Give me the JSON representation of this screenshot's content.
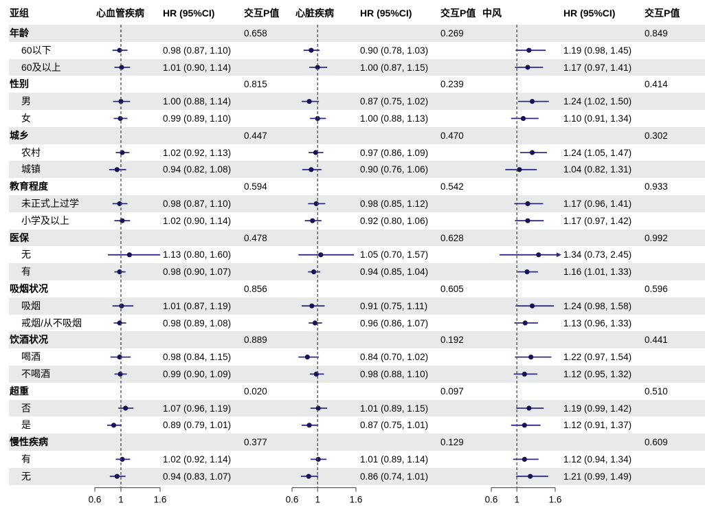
{
  "chart_data": {
    "type": "forest",
    "title": "",
    "axis": {
      "min": 0.6,
      "max": 1.6,
      "reference": 1,
      "ticks": [
        "0.6",
        "1",
        "1.6"
      ],
      "scale": "linear"
    },
    "header": {
      "subgroup": "亚组",
      "cols": [
        {
          "outcome": "心血管疾病",
          "hr": "HR (95%CI)",
          "p": "交互P值"
        },
        {
          "outcome": "心脏疾病",
          "hr": "HR (95%CI)",
          "p": "交互P值"
        },
        {
          "outcome": "中风",
          "hr": "HR (95%CI)",
          "p": "交互P值"
        }
      ]
    },
    "rows": [
      {
        "type": "group",
        "label": "年龄",
        "p": [
          "0.658",
          "0.269",
          "0.849"
        ]
      },
      {
        "type": "item",
        "label": "60以下",
        "hr": [
          {
            "est": 0.98,
            "lo": 0.87,
            "hi": 1.1,
            "text": "0.98 (0.87, 1.10)"
          },
          {
            "est": 0.9,
            "lo": 0.78,
            "hi": 1.03,
            "text": "0.90 (0.78, 1.03)"
          },
          {
            "est": 1.19,
            "lo": 0.98,
            "hi": 1.45,
            "text": "1.19 (0.98, 1.45)"
          }
        ]
      },
      {
        "type": "item",
        "label": "60及以上",
        "hr": [
          {
            "est": 1.01,
            "lo": 0.9,
            "hi": 1.14,
            "text": "1.01 (0.90, 1.14)"
          },
          {
            "est": 1.0,
            "lo": 0.87,
            "hi": 1.15,
            "text": "1.00 (0.87, 1.15)"
          },
          {
            "est": 1.17,
            "lo": 0.97,
            "hi": 1.41,
            "text": "1.17 (0.97, 1.41)"
          }
        ]
      },
      {
        "type": "group",
        "label": "性别",
        "p": [
          "0.815",
          "0.239",
          "0.414"
        ]
      },
      {
        "type": "item",
        "label": "男",
        "hr": [
          {
            "est": 1.0,
            "lo": 0.88,
            "hi": 1.14,
            "text": "1.00 (0.88, 1.14)"
          },
          {
            "est": 0.87,
            "lo": 0.75,
            "hi": 1.02,
            "text": "0.87 (0.75, 1.02)"
          },
          {
            "est": 1.24,
            "lo": 1.02,
            "hi": 1.5,
            "text": "1.24 (1.02, 1.50)"
          }
        ]
      },
      {
        "type": "item",
        "label": "女",
        "hr": [
          {
            "est": 0.99,
            "lo": 0.89,
            "hi": 1.1,
            "text": "0.99 (0.89, 1.10)"
          },
          {
            "est": 1.0,
            "lo": 0.88,
            "hi": 1.13,
            "text": "1.00 (0.88, 1.13)"
          },
          {
            "est": 1.1,
            "lo": 0.91,
            "hi": 1.34,
            "text": "1.10 (0.91, 1.34)"
          }
        ]
      },
      {
        "type": "group",
        "label": "城乡",
        "p": [
          "0.447",
          "0.470",
          "0.302"
        ]
      },
      {
        "type": "item",
        "label": "农村",
        "hr": [
          {
            "est": 1.02,
            "lo": 0.92,
            "hi": 1.13,
            "text": "1.02 (0.92, 1.13)"
          },
          {
            "est": 0.97,
            "lo": 0.86,
            "hi": 1.09,
            "text": "0.97 (0.86, 1.09)"
          },
          {
            "est": 1.24,
            "lo": 1.05,
            "hi": 1.47,
            "text": "1.24 (1.05, 1.47)"
          }
        ]
      },
      {
        "type": "item",
        "label": "城镇",
        "hr": [
          {
            "est": 0.94,
            "lo": 0.82,
            "hi": 1.08,
            "text": "0.94 (0.82, 1.08)"
          },
          {
            "est": 0.9,
            "lo": 0.76,
            "hi": 1.06,
            "text": "0.90 (0.76, 1.06)"
          },
          {
            "est": 1.04,
            "lo": 0.82,
            "hi": 1.31,
            "text": "1.04 (0.82, 1.31)"
          }
        ]
      },
      {
        "type": "group",
        "label": "教育程度",
        "p": [
          "0.594",
          "0.542",
          "0.933"
        ]
      },
      {
        "type": "item",
        "label": "未正式上过学",
        "hr": [
          {
            "est": 0.98,
            "lo": 0.87,
            "hi": 1.1,
            "text": "0.98 (0.87, 1.10)"
          },
          {
            "est": 0.98,
            "lo": 0.85,
            "hi": 1.12,
            "text": "0.98 (0.85, 1.12)"
          },
          {
            "est": 1.17,
            "lo": 0.96,
            "hi": 1.41,
            "text": "1.17 (0.96, 1.41)"
          }
        ]
      },
      {
        "type": "item",
        "label": "小学及以上",
        "hr": [
          {
            "est": 1.02,
            "lo": 0.9,
            "hi": 1.14,
            "text": "1.02 (0.90, 1.14)"
          },
          {
            "est": 0.92,
            "lo": 0.8,
            "hi": 1.06,
            "text": "0.92 (0.80, 1.06)"
          },
          {
            "est": 1.17,
            "lo": 0.97,
            "hi": 1.42,
            "text": "1.17 (0.97, 1.42)"
          }
        ]
      },
      {
        "type": "group",
        "label": "医保",
        "p": [
          "0.478",
          "0.628",
          "0.992"
        ]
      },
      {
        "type": "item",
        "label": "无",
        "hr": [
          {
            "est": 1.13,
            "lo": 0.8,
            "hi": 1.6,
            "text": "1.13 (0.80, 1.60)"
          },
          {
            "est": 1.05,
            "lo": 0.7,
            "hi": 1.57,
            "text": "1.05 (0.70, 1.57)"
          },
          {
            "est": 1.34,
            "lo": 0.73,
            "hi": 2.45,
            "text": "1.34 (0.73, 2.45)",
            "arrow": true
          }
        ]
      },
      {
        "type": "item",
        "label": "有",
        "hr": [
          {
            "est": 0.98,
            "lo": 0.9,
            "hi": 1.07,
            "text": "0.98 (0.90, 1.07)"
          },
          {
            "est": 0.94,
            "lo": 0.85,
            "hi": 1.04,
            "text": "0.94 (0.85, 1.04)"
          },
          {
            "est": 1.16,
            "lo": 1.01,
            "hi": 1.33,
            "text": "1.16 (1.01, 1.33)"
          }
        ]
      },
      {
        "type": "group",
        "label": "吸烟状况",
        "p": [
          "0.856",
          "0.605",
          "0.596"
        ]
      },
      {
        "type": "item",
        "label": "吸烟",
        "hr": [
          {
            "est": 1.01,
            "lo": 0.87,
            "hi": 1.19,
            "text": "1.01 (0.87, 1.19)"
          },
          {
            "est": 0.91,
            "lo": 0.75,
            "hi": 1.11,
            "text": "0.91 (0.75, 1.11)"
          },
          {
            "est": 1.24,
            "lo": 0.98,
            "hi": 1.58,
            "text": "1.24 (0.98, 1.58)"
          }
        ]
      },
      {
        "type": "item",
        "label": "戒烟/从不吸烟",
        "hr": [
          {
            "est": 0.98,
            "lo": 0.89,
            "hi": 1.08,
            "text": "0.98 (0.89, 1.08)"
          },
          {
            "est": 0.96,
            "lo": 0.86,
            "hi": 1.07,
            "text": "0.96 (0.86, 1.07)"
          },
          {
            "est": 1.13,
            "lo": 0.96,
            "hi": 1.33,
            "text": "1.13 (0.96, 1.33)"
          }
        ]
      },
      {
        "type": "group",
        "label": "饮酒状况",
        "p": [
          "0.889",
          "0.192",
          "0.441"
        ]
      },
      {
        "type": "item",
        "label": "喝酒",
        "hr": [
          {
            "est": 0.98,
            "lo": 0.84,
            "hi": 1.15,
            "text": "0.98 (0.84, 1.15)"
          },
          {
            "est": 0.84,
            "lo": 0.7,
            "hi": 1.02,
            "text": "0.84 (0.70, 1.02)"
          },
          {
            "est": 1.22,
            "lo": 0.97,
            "hi": 1.54,
            "text": "1.22 (0.97, 1.54)"
          }
        ]
      },
      {
        "type": "item",
        "label": "不喝酒",
        "hr": [
          {
            "est": 0.99,
            "lo": 0.9,
            "hi": 1.09,
            "text": "0.99 (0.90, 1.09)"
          },
          {
            "est": 0.98,
            "lo": 0.88,
            "hi": 1.1,
            "text": "0.98 (0.88, 1.10)"
          },
          {
            "est": 1.12,
            "lo": 0.95,
            "hi": 1.32,
            "text": "1.12 (0.95, 1.32)"
          }
        ]
      },
      {
        "type": "group",
        "label": "超重",
        "p": [
          "0.020",
          "0.097",
          "0.510"
        ]
      },
      {
        "type": "item",
        "label": "否",
        "hr": [
          {
            "est": 1.07,
            "lo": 0.96,
            "hi": 1.19,
            "text": "1.07 (0.96, 1.19)"
          },
          {
            "est": 1.01,
            "lo": 0.89,
            "hi": 1.15,
            "text": "1.01 (0.89, 1.15)"
          },
          {
            "est": 1.19,
            "lo": 0.99,
            "hi": 1.42,
            "text": "1.19 (0.99, 1.42)"
          }
        ]
      },
      {
        "type": "item",
        "label": "是",
        "hr": [
          {
            "est": 0.89,
            "lo": 0.79,
            "hi": 1.01,
            "text": "0.89 (0.79, 1.01)"
          },
          {
            "est": 0.87,
            "lo": 0.75,
            "hi": 1.01,
            "text": "0.87 (0.75, 1.01)"
          },
          {
            "est": 1.12,
            "lo": 0.91,
            "hi": 1.37,
            "text": "1.12 (0.91, 1.37)"
          }
        ]
      },
      {
        "type": "group",
        "label": "慢性疾病",
        "p": [
          "0.377",
          "0.129",
          "0.609"
        ]
      },
      {
        "type": "item",
        "label": "有",
        "hr": [
          {
            "est": 1.02,
            "lo": 0.92,
            "hi": 1.14,
            "text": "1.02 (0.92, 1.14)"
          },
          {
            "est": 1.01,
            "lo": 0.89,
            "hi": 1.14,
            "text": "1.01 (0.89, 1.14)"
          },
          {
            "est": 1.12,
            "lo": 0.94,
            "hi": 1.34,
            "text": "1.12 (0.94, 1.34)"
          }
        ]
      },
      {
        "type": "item",
        "label": "无",
        "hr": [
          {
            "est": 0.94,
            "lo": 0.83,
            "hi": 1.07,
            "text": "0.94 (0.83, 1.07)"
          },
          {
            "est": 0.86,
            "lo": 0.74,
            "hi": 1.01,
            "text": "0.86 (0.74, 1.01)"
          },
          {
            "est": 1.21,
            "lo": 0.99,
            "hi": 1.49,
            "text": "1.21 (0.99, 1.49)"
          }
        ]
      }
    ],
    "colors": {
      "stripe": "#e8eaea",
      "ci_line": "#2b2b87",
      "marker": "#141457",
      "reference_line": "#4a4a4a",
      "axis": "#5a5a5a",
      "text": "#000000"
    }
  }
}
